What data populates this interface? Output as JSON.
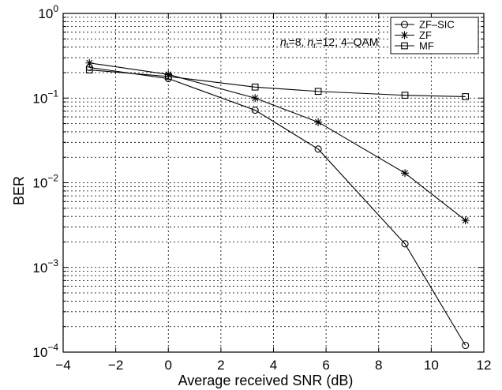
{
  "chart_data": {
    "type": "line",
    "title": "",
    "xlabel": "Average received SNR (dB)",
    "ylabel": "BER",
    "xlim": [
      -4,
      12
    ],
    "ylim": [
      0.0001,
      1
    ],
    "yscale": "log",
    "grid": true,
    "x_ticks": [
      "−4",
      "−2",
      "0",
      "2",
      "4",
      "6",
      "8",
      "10",
      "12"
    ],
    "y_ticks": [
      {
        "base": "10",
        "exp": "0"
      },
      {
        "base": "10",
        "exp": "−1"
      },
      {
        "base": "10",
        "exp": "−2"
      },
      {
        "base": "10",
        "exp": "−3"
      },
      {
        "base": "10",
        "exp": "−4"
      }
    ],
    "annotation": {
      "parts": [
        {
          "t": "n",
          "style": "italic"
        },
        {
          "t": "t",
          "style": "sub"
        },
        {
          "t": "=8, ",
          "style": "normal"
        },
        {
          "t": "n",
          "style": "italic"
        },
        {
          "t": "r",
          "style": "sub"
        },
        {
          "t": "=12, 4–QAM",
          "style": "normal"
        }
      ]
    },
    "legend_position": "top-right",
    "series": [
      {
        "name": "ZF–SIC",
        "marker": "circle",
        "x": [
          -3,
          0,
          3.3,
          5.7,
          9.0,
          11.3
        ],
        "y": [
          0.23,
          0.17,
          0.072,
          0.025,
          0.0019,
          0.00012
        ]
      },
      {
        "name": "ZF",
        "marker": "star",
        "x": [
          -3,
          0,
          3.3,
          5.7,
          9.0,
          11.3
        ],
        "y": [
          0.26,
          0.19,
          0.1,
          0.052,
          0.013,
          0.0036
        ]
      },
      {
        "name": "MF",
        "marker": "square",
        "x": [
          -3,
          0,
          3.3,
          5.7,
          9.0,
          11.3
        ],
        "y": [
          0.215,
          0.18,
          0.135,
          0.12,
          0.108,
          0.104
        ]
      }
    ]
  }
}
